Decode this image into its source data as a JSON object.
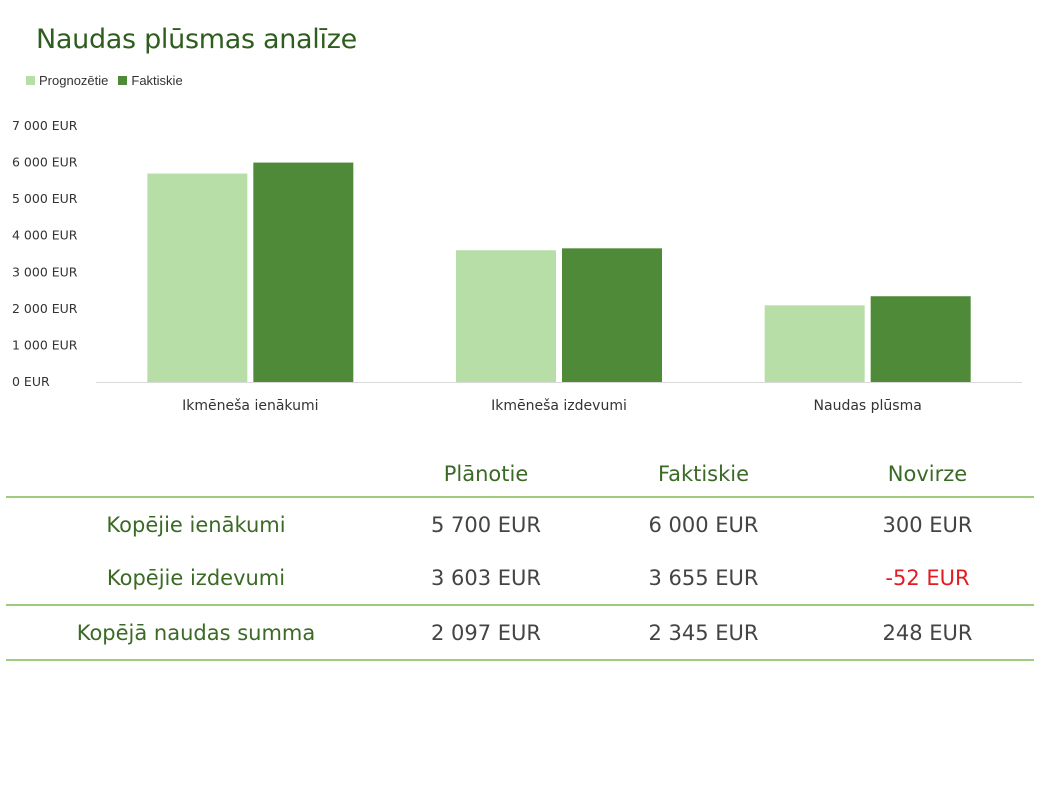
{
  "title": "Naudas plūsmas analīze",
  "colors": {
    "projected": "#b7dea7",
    "actual": "#4e8a37",
    "negative": "#e31b23",
    "rule": "#9ccc7c"
  },
  "chart_data": {
    "type": "bar",
    "categories": [
      "Ikmēneša ienākumi",
      "Ikmēneša izdevumi",
      "Naudas plūsma"
    ],
    "series": [
      {
        "name": "Prognozētie",
        "values": [
          5700,
          3603,
          2097
        ]
      },
      {
        "name": "Faktiskie",
        "values": [
          6000,
          3655,
          2345
        ]
      }
    ],
    "ylim": [
      0,
      7000
    ],
    "yticks": [
      0,
      1000,
      2000,
      3000,
      4000,
      5000,
      6000,
      7000
    ],
    "ytick_labels": [
      "0 EUR",
      "1 000 EUR",
      "2 000 EUR",
      "3 000 EUR",
      "4 000 EUR",
      "5 000 EUR",
      "6 000 EUR",
      "7 000 EUR"
    ],
    "legend": "top-left",
    "grid": false
  },
  "table": {
    "headers": [
      "",
      "Plānotie",
      "Faktiskie",
      "Novirze"
    ],
    "rows": [
      [
        "Kopējie ienākumi",
        "5 700 EUR",
        "6 000 EUR",
        "300 EUR"
      ],
      [
        "Kopējie izdevumi",
        "3 603 EUR",
        "3 655 EUR",
        "-52 EUR"
      ],
      [
        "Kopējā naudas summa",
        "2 097 EUR",
        "2 345 EUR",
        "248 EUR"
      ]
    ]
  }
}
